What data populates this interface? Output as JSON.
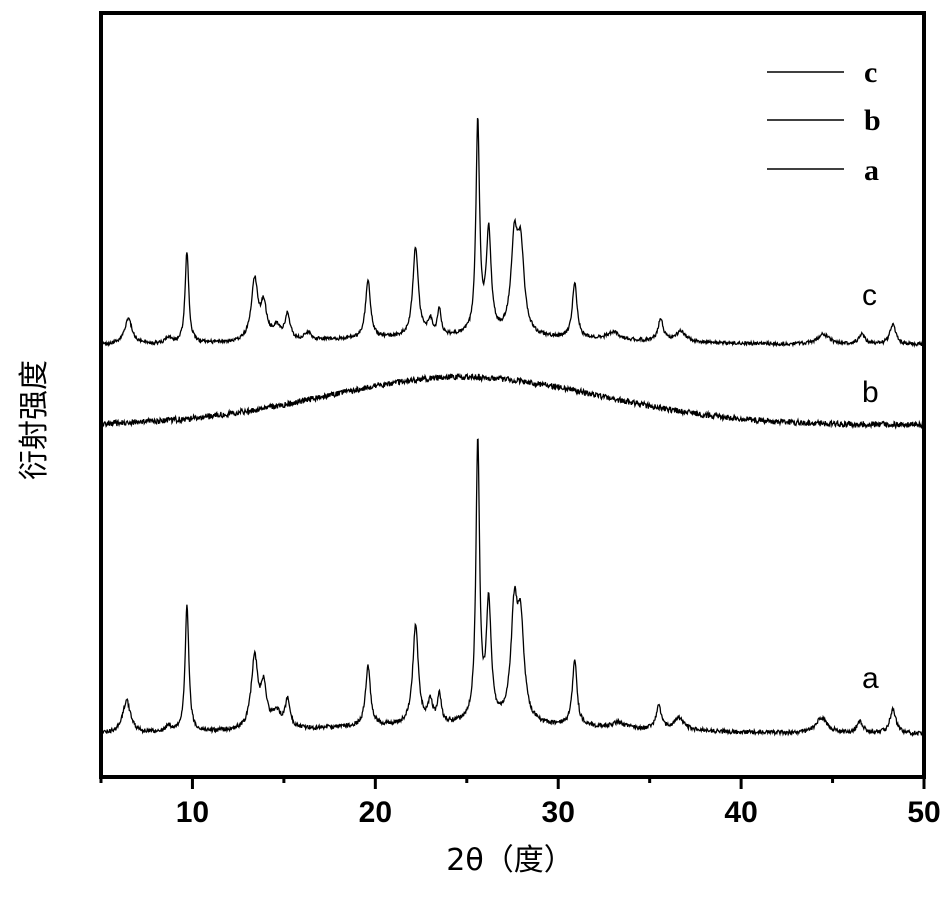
{
  "chart_data": {
    "type": "line",
    "title": "",
    "xlabel": "2θ（度）",
    "ylabel": "衍射强度",
    "xlim": [
      5,
      50
    ],
    "x_ticks": [
      10,
      20,
      30,
      40,
      50
    ],
    "y_ticks_shown": false,
    "grid": false,
    "legend": {
      "placement": "top-right",
      "entries": [
        "c",
        "b",
        "a"
      ]
    },
    "series": [
      {
        "name": "a",
        "baseline": 0.0,
        "peaks": [
          {
            "x": 6.4,
            "h": 0.11,
            "w": 0.25
          },
          {
            "x": 8.7,
            "h": 0.02,
            "w": 0.2
          },
          {
            "x": 9.7,
            "h": 0.43,
            "w": 0.12
          },
          {
            "x": 13.4,
            "h": 0.24,
            "w": 0.22
          },
          {
            "x": 13.9,
            "h": 0.13,
            "w": 0.18
          },
          {
            "x": 14.6,
            "h": 0.05,
            "w": 0.3
          },
          {
            "x": 15.2,
            "h": 0.09,
            "w": 0.16
          },
          {
            "x": 19.6,
            "h": 0.2,
            "w": 0.16
          },
          {
            "x": 22.2,
            "h": 0.33,
            "w": 0.18
          },
          {
            "x": 23.0,
            "h": 0.07,
            "w": 0.15
          },
          {
            "x": 23.5,
            "h": 0.1,
            "w": 0.12
          },
          {
            "x": 25.6,
            "h": 0.93,
            "w": 0.12
          },
          {
            "x": 26.2,
            "h": 0.39,
            "w": 0.16
          },
          {
            "x": 27.6,
            "h": 0.36,
            "w": 0.22
          },
          {
            "x": 27.95,
            "h": 0.3,
            "w": 0.22
          },
          {
            "x": 30.9,
            "h": 0.22,
            "w": 0.15
          },
          {
            "x": 33.3,
            "h": 0.02,
            "w": 0.4
          },
          {
            "x": 35.5,
            "h": 0.08,
            "w": 0.16
          },
          {
            "x": 36.6,
            "h": 0.04,
            "w": 0.35
          },
          {
            "x": 44.4,
            "h": 0.05,
            "w": 0.4
          },
          {
            "x": 46.5,
            "h": 0.04,
            "w": 0.2
          },
          {
            "x": 48.3,
            "h": 0.08,
            "w": 0.2
          }
        ]
      },
      {
        "name": "b",
        "baseline": 0.0,
        "hump": {
          "center": 24.8,
          "height": 0.16,
          "width": 7.5
        },
        "peaks": []
      },
      {
        "name": "c",
        "baseline": 0.0,
        "peaks": [
          {
            "x": 6.5,
            "h": 0.1,
            "w": 0.25
          },
          {
            "x": 8.7,
            "h": 0.02,
            "w": 0.2
          },
          {
            "x": 9.7,
            "h": 0.36,
            "w": 0.12
          },
          {
            "x": 13.4,
            "h": 0.24,
            "w": 0.22
          },
          {
            "x": 13.9,
            "h": 0.13,
            "w": 0.18
          },
          {
            "x": 14.6,
            "h": 0.05,
            "w": 0.3
          },
          {
            "x": 15.2,
            "h": 0.1,
            "w": 0.16
          },
          {
            "x": 16.3,
            "h": 0.03,
            "w": 0.2
          },
          {
            "x": 19.6,
            "h": 0.23,
            "w": 0.16
          },
          {
            "x": 22.2,
            "h": 0.35,
            "w": 0.18
          },
          {
            "x": 23.0,
            "h": 0.06,
            "w": 0.15
          },
          {
            "x": 23.5,
            "h": 0.1,
            "w": 0.12
          },
          {
            "x": 25.6,
            "h": 0.83,
            "w": 0.12
          },
          {
            "x": 26.2,
            "h": 0.4,
            "w": 0.16
          },
          {
            "x": 27.6,
            "h": 0.35,
            "w": 0.22
          },
          {
            "x": 27.95,
            "h": 0.32,
            "w": 0.22
          },
          {
            "x": 30.9,
            "h": 0.22,
            "w": 0.15
          },
          {
            "x": 33.0,
            "h": 0.03,
            "w": 0.4
          },
          {
            "x": 35.6,
            "h": 0.09,
            "w": 0.16
          },
          {
            "x": 36.7,
            "h": 0.04,
            "w": 0.35
          },
          {
            "x": 44.5,
            "h": 0.04,
            "w": 0.4
          },
          {
            "x": 46.6,
            "h": 0.04,
            "w": 0.2
          },
          {
            "x": 48.3,
            "h": 0.08,
            "w": 0.2
          }
        ]
      }
    ]
  },
  "colors": {
    "line": "#000000",
    "axis": "#000000",
    "background": "#ffffff"
  }
}
